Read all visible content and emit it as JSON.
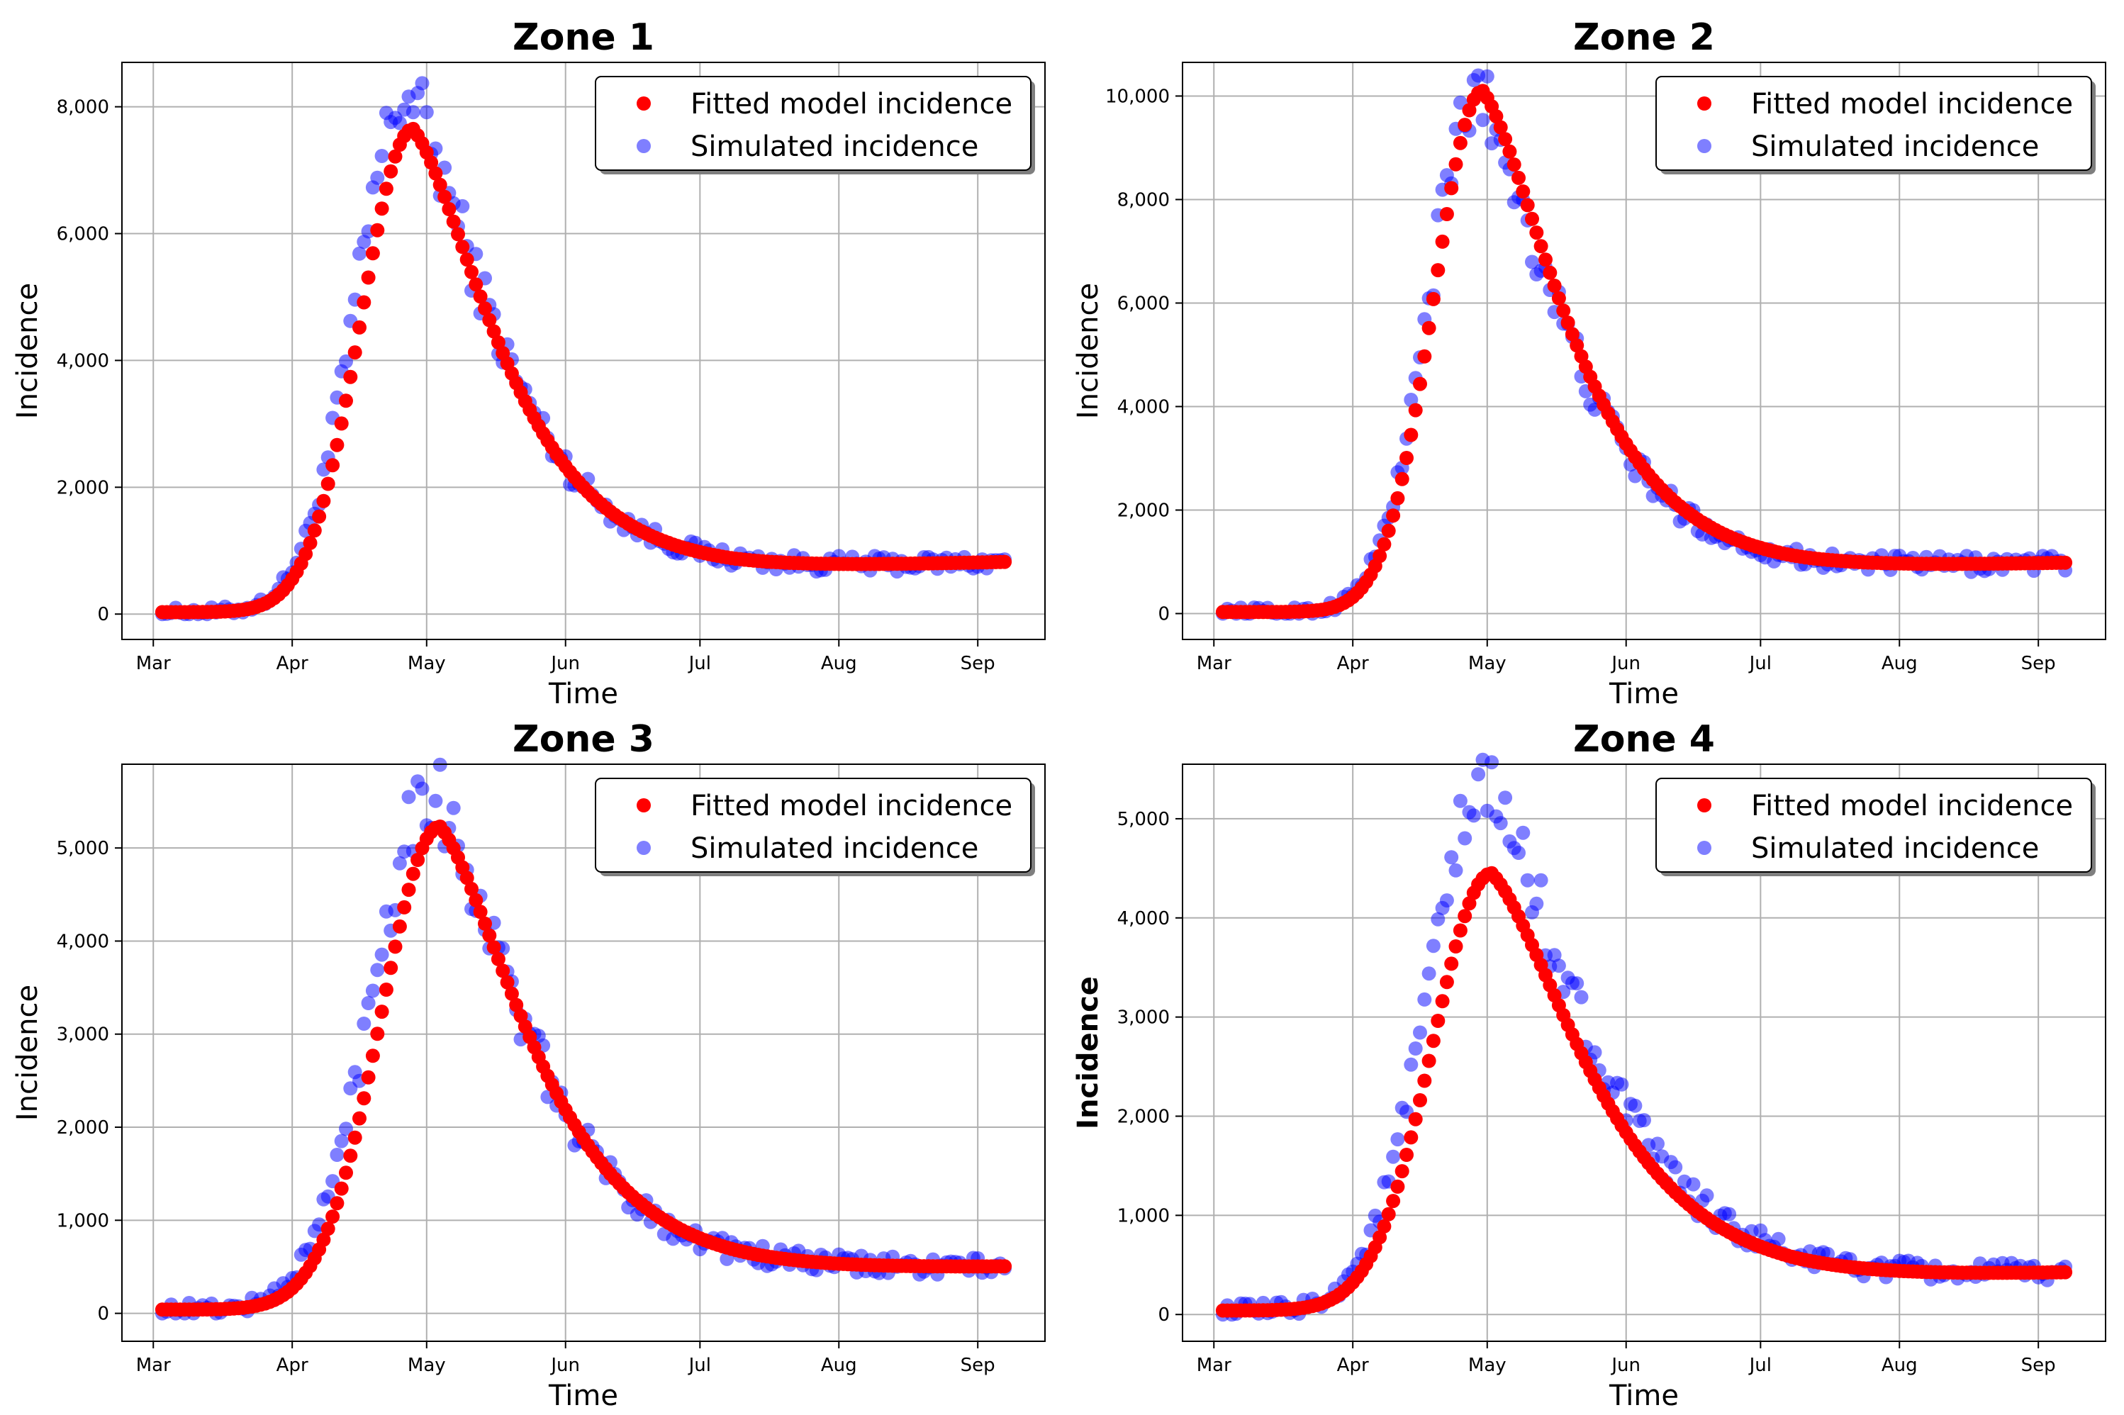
{
  "colors": {
    "fitted": "#ff0000",
    "simulated": "#0000ff",
    "grid": "#b0b0b0",
    "axis": "#000000"
  },
  "legend": {
    "fitted_label": "Fitted model incidence",
    "simulated_label": "Simulated incidence"
  },
  "chart_data": [
    {
      "type": "scatter",
      "title": "Zone 1",
      "xlabel": "Time",
      "ylabel": "Incidence",
      "ylabel_bold": false,
      "x_ticks": [
        {
          "day": 0,
          "label": "Mar"
        },
        {
          "day": 31,
          "label": "Apr"
        },
        {
          "day": 61,
          "label": "May"
        },
        {
          "day": 92,
          "label": "Jun"
        },
        {
          "day": 122,
          "label": "Jul"
        },
        {
          "day": 153,
          "label": "Aug"
        },
        {
          "day": 184,
          "label": "Sep"
        }
      ],
      "y_ticks": [
        {
          "value": 0,
          "label": "0"
        },
        {
          "value": 2000,
          "label": "2,000"
        },
        {
          "value": 4000,
          "label": "4,000"
        },
        {
          "value": 6000,
          "label": "6,000"
        },
        {
          "value": 8000,
          "label": "8,000"
        }
      ],
      "xlim": [
        -7,
        199
      ],
      "ylim": [
        -400,
        8700
      ],
      "days": [
        2,
        190
      ],
      "model": {
        "peak_day": 58,
        "peak": 7650,
        "rise": 7.5,
        "fall": 13,
        "base": 30,
        "base_end": 820,
        "tail_shape": "dip",
        "tail_min": 720
      },
      "sim": {
        "peak_day": 57,
        "peak": 8200,
        "noise": 70
      },
      "legend_position": "upper right",
      "grid": true
    },
    {
      "type": "scatter",
      "title": "Zone 2",
      "xlabel": "Time",
      "ylabel": "Incidence",
      "ylabel_bold": false,
      "x_ticks": [
        {
          "day": 0,
          "label": "Mar"
        },
        {
          "day": 31,
          "label": "Apr"
        },
        {
          "day": 61,
          "label": "May"
        },
        {
          "day": 92,
          "label": "Jun"
        },
        {
          "day": 122,
          "label": "Jul"
        },
        {
          "day": 153,
          "label": "Aug"
        },
        {
          "day": 184,
          "label": "Sep"
        }
      ],
      "y_ticks": [
        {
          "value": 0,
          "label": "0"
        },
        {
          "value": 2000,
          "label": "2,000"
        },
        {
          "value": 4000,
          "label": "4,000"
        },
        {
          "value": 6000,
          "label": "6,000"
        },
        {
          "value": 8000,
          "label": "8,000"
        },
        {
          "value": 10000,
          "label": "10,000"
        }
      ],
      "xlim": [
        -7,
        199
      ],
      "ylim": [
        -500,
        10650
      ],
      "days": [
        2,
        190
      ],
      "model": {
        "peak_day": 60,
        "peak": 10100,
        "rise": 7,
        "fall": 13,
        "base": 30,
        "base_end": 980,
        "tail_shape": "dip",
        "tail_min": 880
      },
      "sim": {
        "peak_day": 59,
        "peak": 10050,
        "noise": 90
      },
      "legend_position": "upper right",
      "grid": true
    },
    {
      "type": "scatter",
      "title": "Zone 3",
      "xlabel": "Time",
      "ylabel": "Incidence",
      "ylabel_bold": false,
      "x_ticks": [
        {
          "day": 0,
          "label": "Mar"
        },
        {
          "day": 31,
          "label": "Apr"
        },
        {
          "day": 61,
          "label": "May"
        },
        {
          "day": 92,
          "label": "Jun"
        },
        {
          "day": 122,
          "label": "Jul"
        },
        {
          "day": 153,
          "label": "Aug"
        },
        {
          "day": 184,
          "label": "Sep"
        }
      ],
      "y_ticks": [
        {
          "value": 0,
          "label": "0"
        },
        {
          "value": 1000,
          "label": "1,000"
        },
        {
          "value": 2000,
          "label": "2,000"
        },
        {
          "value": 3000,
          "label": "3,000"
        },
        {
          "value": 4000,
          "label": "4,000"
        },
        {
          "value": 5000,
          "label": "5,000"
        }
      ],
      "xlim": [
        -7,
        199
      ],
      "ylim": [
        -300,
        5900
      ],
      "days": [
        2,
        190
      ],
      "model": {
        "peak_day": 64,
        "peak": 5230,
        "rise": 8.5,
        "fall": 14,
        "base": 40,
        "base_end": 500,
        "tail_shape": "dip",
        "tail_min": 470
      },
      "sim": {
        "peak_day": 62,
        "peak": 5650,
        "noise": 70
      },
      "legend_position": "upper right",
      "grid": true
    },
    {
      "type": "scatter",
      "title": "Zone 4",
      "xlabel": "Time",
      "ylabel": "Incidence",
      "ylabel_bold": true,
      "x_ticks": [
        {
          "day": 0,
          "label": "Mar"
        },
        {
          "day": 31,
          "label": "Apr"
        },
        {
          "day": 61,
          "label": "May"
        },
        {
          "day": 92,
          "label": "Jun"
        },
        {
          "day": 122,
          "label": "Jul"
        },
        {
          "day": 153,
          "label": "Aug"
        },
        {
          "day": 184,
          "label": "Sep"
        }
      ],
      "y_ticks": [
        {
          "value": 0,
          "label": "0"
        },
        {
          "value": 1000,
          "label": "1,000"
        },
        {
          "value": 2000,
          "label": "2,000"
        },
        {
          "value": 3000,
          "label": "3,000"
        },
        {
          "value": 4000,
          "label": "4,000"
        },
        {
          "value": 5000,
          "label": "5,000"
        }
      ],
      "xlim": [
        -7,
        199
      ],
      "ylim": [
        -270,
        5550
      ],
      "days": [
        2,
        190
      ],
      "model": {
        "peak_day": 62,
        "peak": 4450,
        "rise": 8.5,
        "fall": 15,
        "base": 40,
        "base_end": 420,
        "tail_shape": "dip",
        "tail_min": 360
      },
      "sim": {
        "peak_day": 61,
        "peak": 5300,
        "noise": 70
      },
      "legend_position": "upper right",
      "grid": true
    }
  ]
}
